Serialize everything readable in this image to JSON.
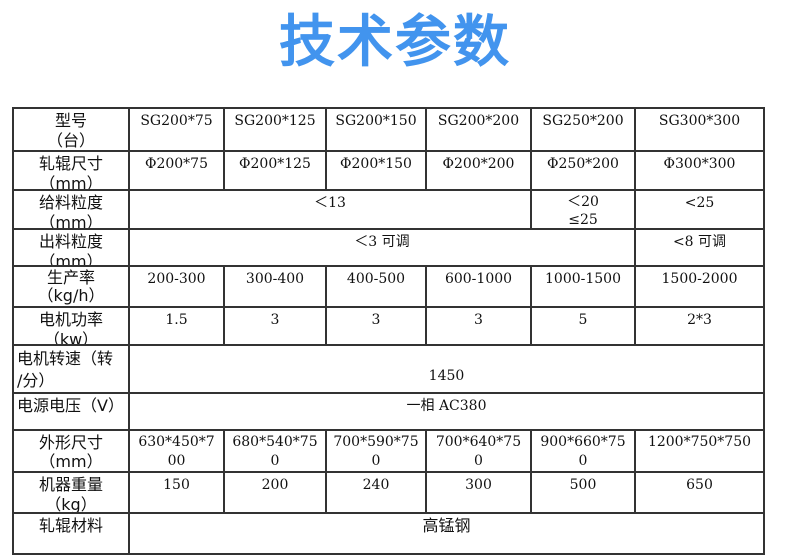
{
  "title": "技术参数",
  "title_color": "#4294ee",
  "table": {
    "models": {
      "label": "型号\n（台）",
      "values": [
        "SG200*75",
        "SG200*125",
        "SG200*150",
        "SG200*200",
        "SG250*200",
        "SG300*300"
      ]
    },
    "roll_size": {
      "label": "轧辊尺寸\n（mm）",
      "values": [
        "Φ200*75",
        "Φ200*125",
        "Φ200*150",
        "Φ200*200",
        "Φ250*200",
        "Φ300*300"
      ]
    },
    "feed_size": {
      "label": "给料粒度\n（mm）",
      "values": [
        "＜13",
        "＜20\n≤25",
        "<25"
      ]
    },
    "output_size": {
      "label": "出料粒度\n（mm）",
      "values": [
        "＜3 可调",
        "<8 可调"
      ]
    },
    "capacity": {
      "label": "生产率\n（kg/h）",
      "values": [
        "200-300",
        "300-400",
        "400-500",
        "600-1000",
        "1000-1500",
        "1500-2000"
      ]
    },
    "motor_power": {
      "label": "电机功率\n（kw）",
      "values": [
        "1.5",
        "3",
        "3",
        "3",
        "5",
        "2*3"
      ]
    },
    "motor_speed": {
      "label": "电机转速（转\n/分）",
      "value": "1450"
    },
    "voltage": {
      "label": "电源电压（V）",
      "value": "一相 AC380"
    },
    "dimensions": {
      "label": "外形尺寸\n（mm）",
      "values": [
        "630*450*7\n00",
        "680*540*75\n0",
        "700*590*75\n0",
        "700*640*75\n0",
        "900*660*75\n0",
        "1200*750*750"
      ]
    },
    "weight": {
      "label": "机器重量\n（kg）",
      "values": [
        "150",
        "200",
        "240",
        "300",
        "500",
        "650"
      ]
    },
    "roll_material": {
      "label": "轧辊材料",
      "value": "高锰钢"
    }
  }
}
